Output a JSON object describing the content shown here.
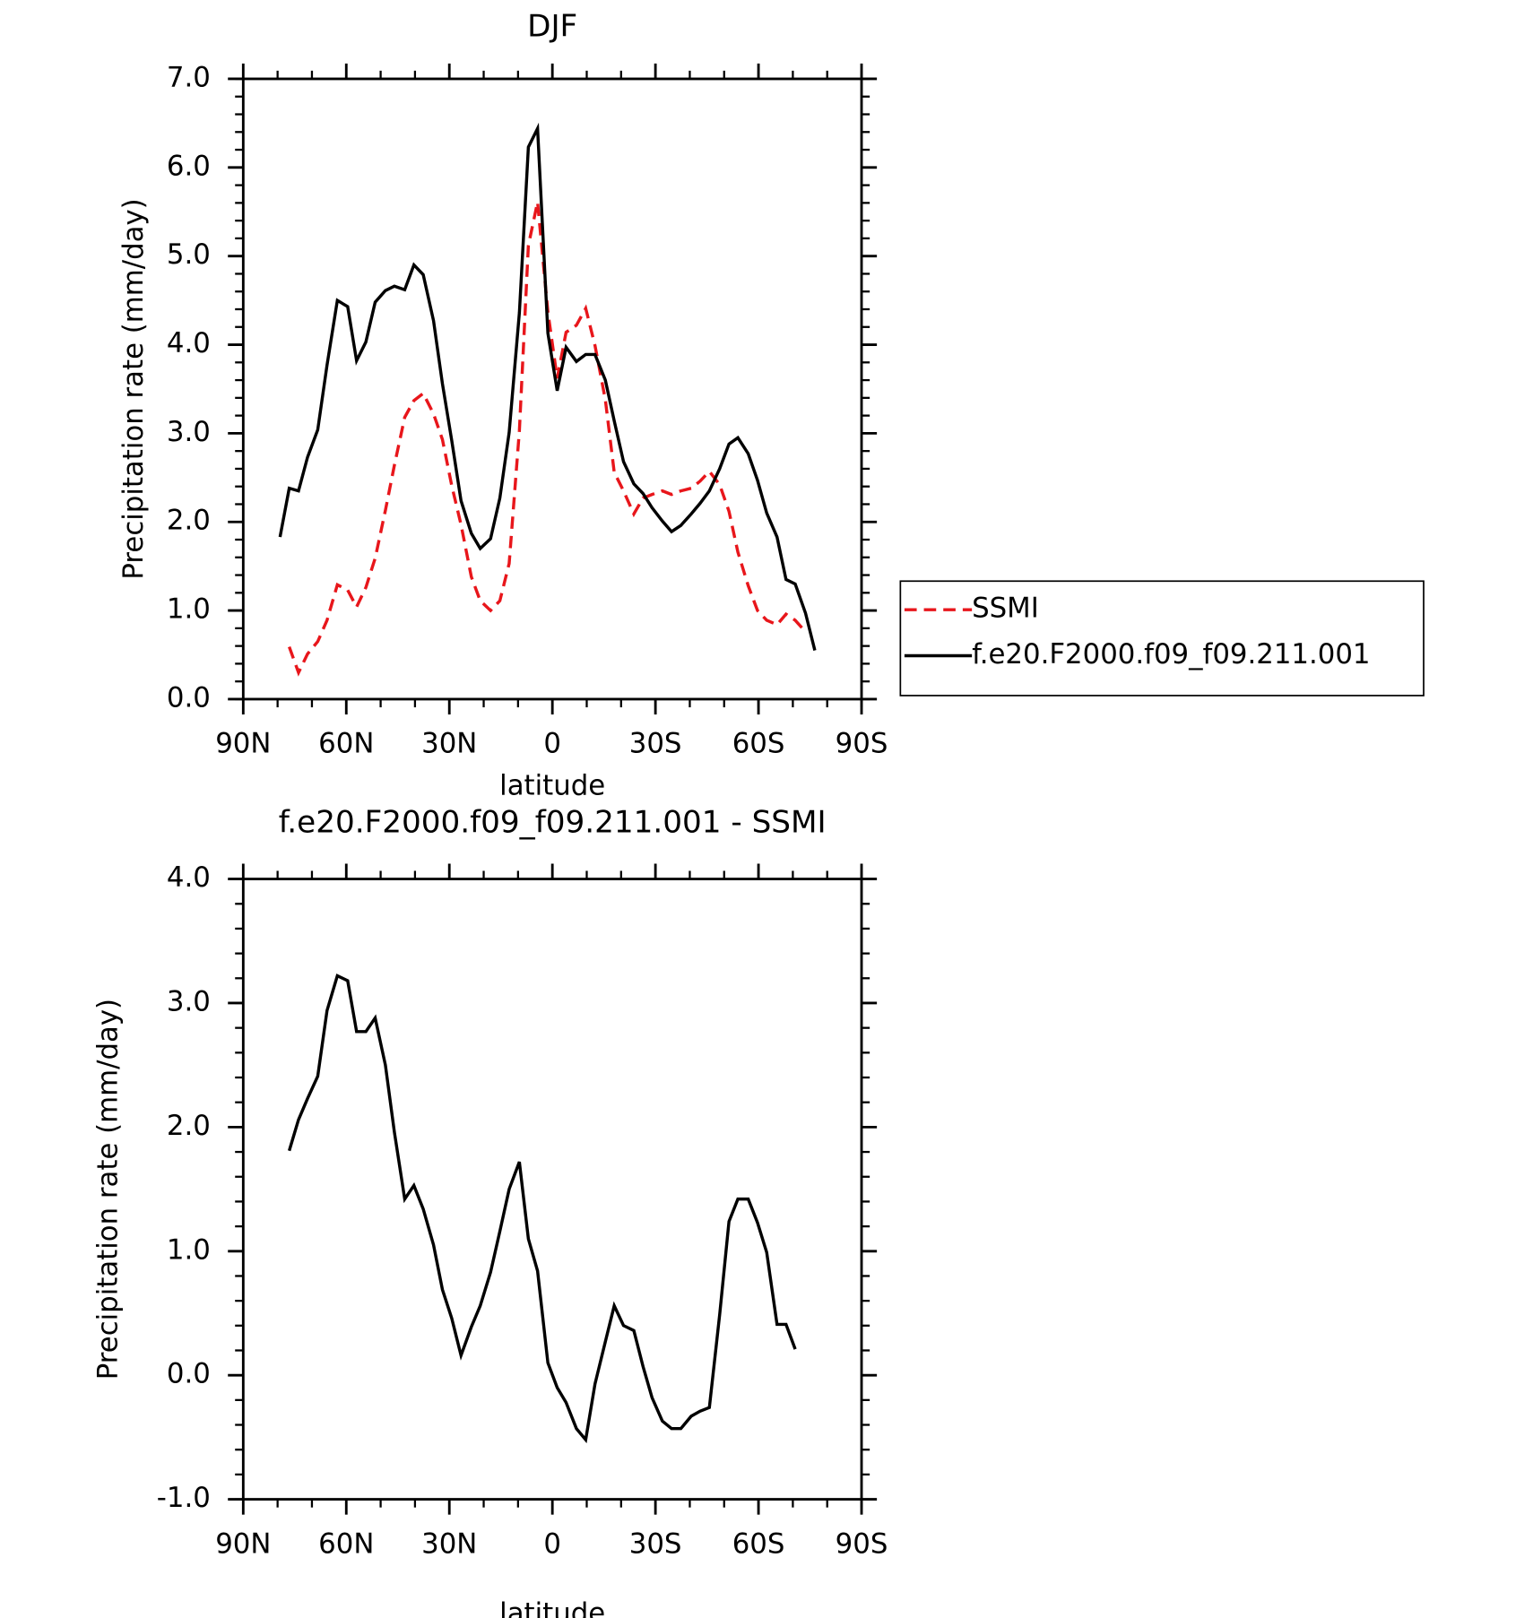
{
  "chart_data": [
    {
      "type": "line",
      "title": "DJF",
      "x_label": "latitude",
      "y_label": "Precipitation rate (mm/day)",
      "xlim": [
        90,
        -90
      ],
      "xticks": [
        {
          "value": 90,
          "label": "90N"
        },
        {
          "value": 60,
          "label": "60N"
        },
        {
          "value": 30,
          "label": "30N"
        },
        0,
        {
          "value": -30,
          "label": "30S"
        },
        {
          "value": -60,
          "label": "60S"
        },
        {
          "value": -90,
          "label": "90S"
        }
      ],
      "ylim": [
        0,
        7
      ],
      "yticks": [
        {
          "value": 0,
          "label": "0.0"
        },
        {
          "value": 1,
          "label": "1.0"
        },
        {
          "value": 2,
          "label": "2.0"
        },
        {
          "value": 3,
          "label": "3.0"
        },
        {
          "value": 4,
          "label": "4.0"
        },
        {
          "value": 5,
          "label": "5.0"
        },
        {
          "value": 6,
          "label": "6.0"
        },
        {
          "value": 7,
          "label": "7.0"
        }
      ],
      "legend": "right",
      "x": [
        79.3,
        76.6,
        73.9,
        71.3,
        68.3,
        65.6,
        62.6,
        59.6,
        57.0,
        54.3,
        51.6,
        48.6,
        46.0,
        43.0,
        40.3,
        37.6,
        34.6,
        32.0,
        29.3,
        26.6,
        23.6,
        21.0,
        18.0,
        15.3,
        12.6,
        9.6,
        7.0,
        4.3,
        1.3,
        -1.4,
        -4.0,
        -7.0,
        -9.7,
        -12.4,
        -15.4,
        -18.0,
        -20.7,
        -23.7,
        -26.4,
        -29.0,
        -32.0,
        -34.7,
        -37.4,
        -40.4,
        -43.0,
        -45.7,
        -48.7,
        -51.4,
        -54.0,
        -57.0,
        -59.7,
        -62.4,
        -65.4,
        -68.0,
        -70.7,
        -73.7,
        -76.4
      ],
      "series": [
        {
          "name": "SSMI",
          "color": "#e8161b",
          "dash": true,
          "values": [
            null,
            0.59,
            0.3,
            0.51,
            0.65,
            0.89,
            1.29,
            1.23,
            1.04,
            1.26,
            1.59,
            2.13,
            2.64,
            3.18,
            3.37,
            3.45,
            3.22,
            2.93,
            2.41,
            1.97,
            1.38,
            1.11,
            1.0,
            1.11,
            1.53,
            3.03,
            5.12,
            5.61,
            4.37,
            3.62,
            4.14,
            4.22,
            4.41,
            3.99,
            3.38,
            2.56,
            2.35,
            2.09,
            2.27,
            2.31,
            2.35,
            2.31,
            2.35,
            2.38,
            2.46,
            2.57,
            2.42,
            2.12,
            1.66,
            1.28,
            1.0,
            0.89,
            0.84,
            0.96,
            0.89,
            0.76,
            null
          ]
        },
        {
          "name": "f.e20.F2000.f09_f09.211.001",
          "color": "#000000",
          "dash": false,
          "values": [
            1.83,
            2.38,
            2.35,
            2.73,
            3.04,
            3.77,
            4.5,
            4.43,
            3.82,
            4.03,
            4.48,
            4.61,
            4.66,
            4.62,
            4.9,
            4.79,
            4.27,
            3.56,
            2.92,
            2.24,
            1.87,
            1.7,
            1.81,
            2.27,
            3.01,
            4.36,
            6.23,
            6.44,
            4.13,
            3.48,
            3.97,
            3.81,
            3.89,
            3.89,
            3.6,
            3.14,
            2.68,
            2.43,
            2.32,
            2.16,
            2.01,
            1.89,
            1.96,
            2.09,
            2.21,
            2.35,
            2.6,
            2.88,
            2.95,
            2.77,
            2.47,
            2.1,
            1.83,
            1.35,
            1.3,
            0.97,
            0.55
          ]
        }
      ]
    },
    {
      "type": "line",
      "title": "f.e20.F2000.f09_f09.211.001 - SSMI",
      "x_label": "latitude",
      "y_label": "Precipitation rate (mm/day)",
      "xlim": [
        90,
        -90
      ],
      "xticks": [
        {
          "value": 90,
          "label": "90N"
        },
        {
          "value": 60,
          "label": "60N"
        },
        {
          "value": 30,
          "label": "30N"
        },
        0,
        {
          "value": -30,
          "label": "30S"
        },
        {
          "value": -60,
          "label": "60S"
        },
        {
          "value": -90,
          "label": "90S"
        }
      ],
      "ylim": [
        -1,
        4
      ],
      "yticks": [
        {
          "value": -1,
          "label": "-1.0"
        },
        {
          "value": 0,
          "label": "0.0"
        },
        {
          "value": 1,
          "label": "1.0"
        },
        {
          "value": 2,
          "label": "2.0"
        },
        {
          "value": 3,
          "label": "3.0"
        },
        {
          "value": 4,
          "label": "4.0"
        }
      ],
      "x": [
        76.6,
        73.9,
        71.3,
        68.3,
        65.6,
        62.6,
        59.6,
        57.0,
        54.3,
        51.6,
        48.6,
        46.0,
        43.0,
        40.3,
        37.6,
        34.6,
        32.0,
        29.3,
        26.6,
        23.6,
        21.0,
        18.0,
        15.3,
        12.6,
        9.6,
        7.0,
        4.3,
        1.3,
        -1.4,
        -4.0,
        -7.0,
        -9.7,
        -12.4,
        -15.4,
        -18.0,
        -20.7,
        -23.7,
        -26.4,
        -29.0,
        -32.0,
        -34.7,
        -37.4,
        -40.4,
        -43.0,
        -45.7,
        -48.7,
        -51.4,
        -54.0,
        -57.0,
        -59.7,
        -62.4,
        -65.4,
        -68.0,
        -70.7
      ],
      "color": "#000000",
      "values": [
        1.81,
        2.06,
        2.23,
        2.41,
        2.94,
        3.22,
        3.18,
        2.77,
        2.77,
        2.88,
        2.5,
        1.96,
        1.42,
        1.53,
        1.34,
        1.05,
        0.69,
        0.46,
        0.16,
        0.39,
        0.56,
        0.83,
        1.16,
        1.5,
        1.72,
        1.1,
        0.84,
        0.1,
        -0.1,
        -0.22,
        -0.43,
        -0.52,
        -0.07,
        0.27,
        0.56,
        0.4,
        0.36,
        0.07,
        -0.18,
        -0.37,
        -0.43,
        -0.43,
        -0.33,
        -0.29,
        -0.26,
        0.49,
        1.24,
        1.42,
        1.42,
        1.23,
        0.99,
        0.41,
        0.41,
        0.21
      ]
    }
  ]
}
